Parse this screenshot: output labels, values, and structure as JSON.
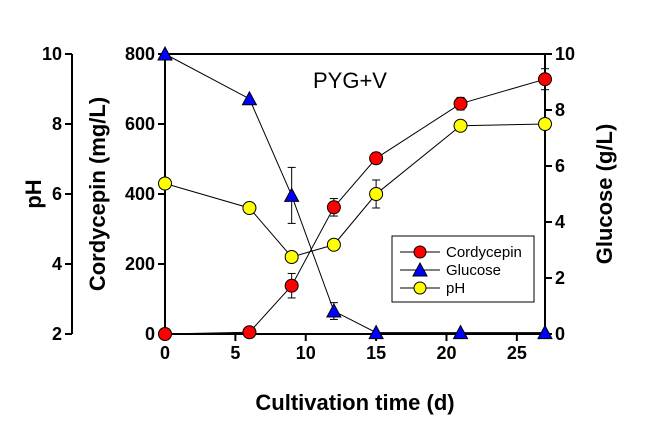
{
  "chart_data": {
    "type": "line",
    "annotation": "PYG+V",
    "xlabel": "Cultivation time (d)",
    "xlim": [
      0,
      27
    ],
    "x_ticks": [
      "0",
      "5",
      "10",
      "15",
      "20",
      "25"
    ],
    "axes": {
      "cordycepin": {
        "label": "Cordycepin (mg/L)",
        "lim": [
          0,
          800
        ],
        "ticks": [
          "0",
          "200",
          "400",
          "600",
          "800"
        ]
      },
      "ph": {
        "label": "pH",
        "lim": [
          2,
          10
        ],
        "ticks": [
          "2",
          "4",
          "6",
          "8",
          "10"
        ]
      },
      "glucose": {
        "label": "Glucose (g/L)",
        "lim": [
          0,
          10
        ],
        "ticks": [
          "0",
          "2",
          "4",
          "6",
          "8",
          "10"
        ]
      }
    },
    "series": [
      {
        "name": "Cordycepin",
        "axis": "cordycepin",
        "marker": "circle",
        "color": "#ff0000",
        "x": [
          0,
          6,
          9,
          12,
          15,
          21,
          27
        ],
        "y": [
          0,
          5,
          138,
          362,
          502,
          658,
          728
        ],
        "error": [
          0,
          0,
          35,
          25,
          0,
          18,
          30
        ]
      },
      {
        "name": "Glucose",
        "axis": "glucose",
        "marker": "triangle",
        "color": "#0000ff",
        "x": [
          0,
          6,
          9,
          12,
          15,
          21,
          27
        ],
        "y": [
          10,
          8.4,
          4.95,
          0.82,
          0.05,
          0.05,
          0.05
        ],
        "error": [
          0,
          0,
          1.0,
          0.3,
          0,
          0,
          0
        ]
      },
      {
        "name": "pH",
        "axis": "ph",
        "marker": "circle",
        "color": "#ffff00",
        "x": [
          0,
          6,
          9,
          12,
          15,
          21,
          27
        ],
        "y": [
          6.3,
          5.6,
          4.2,
          4.55,
          6.0,
          7.95,
          8.0
        ],
        "error": [
          0,
          0,
          0,
          0,
          0.4,
          0,
          0
        ]
      }
    ],
    "legend": {
      "position": "bottom-right",
      "entries": [
        "Cordycepin",
        "Glucose",
        "pH"
      ]
    },
    "grid": false
  }
}
